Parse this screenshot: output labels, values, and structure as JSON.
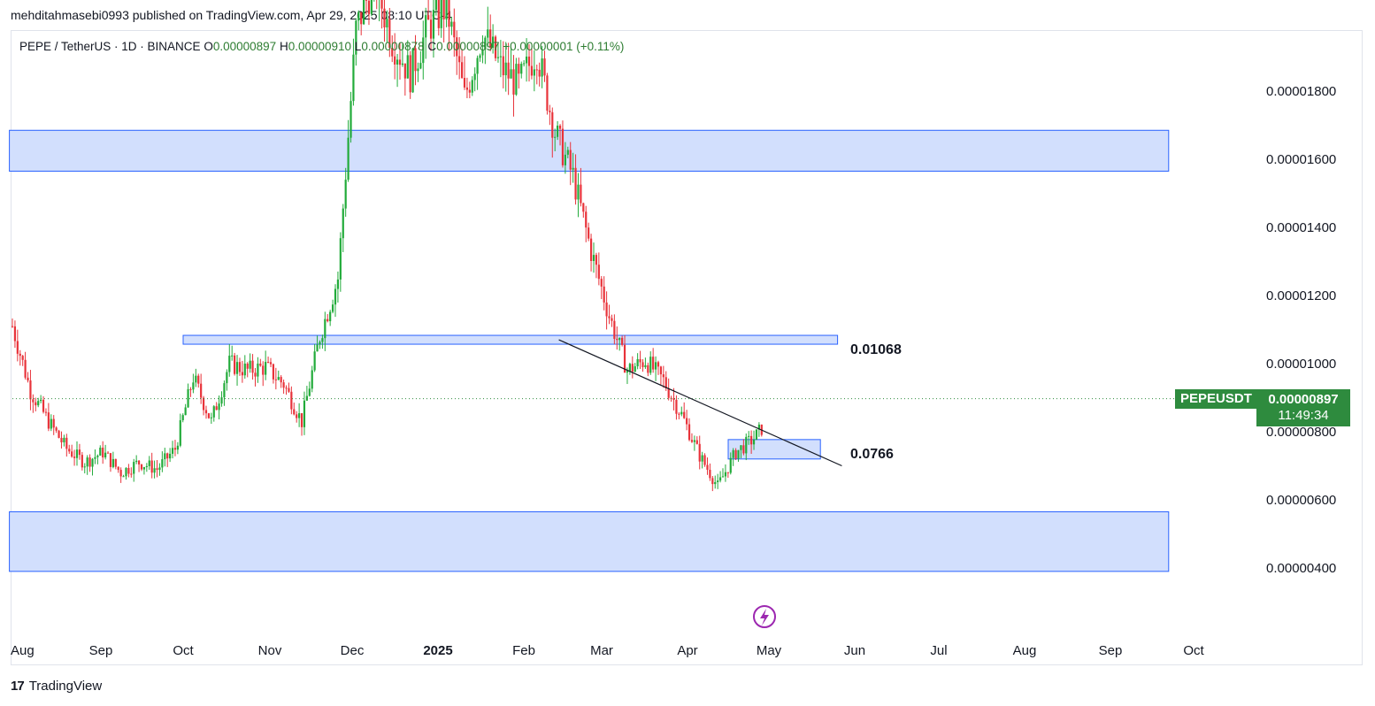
{
  "header": {
    "publish_line": "mehditahmasebi0993 published on TradingView.com, Apr 29, 2025 08:10 UTC-4"
  },
  "legend": {
    "symbol": "PEPE / TetherUS · 1D · BINANCE",
    "o_label": "O",
    "o_value": "0.00000897",
    "h_label": "H",
    "h_value": "0.00000910",
    "l_label": "L",
    "l_value": "0.00000878",
    "c_label": "C",
    "c_value": "0.00000897",
    "change": "+0.00000001 (+0.11%)"
  },
  "price_tag": {
    "symbol": "PEPEUSDT",
    "price": "0.00000897",
    "countdown": "11:49:34"
  },
  "annotations": {
    "upper_level": "0.01068",
    "lower_level": "0.0766"
  },
  "footer": {
    "logo_glyph": "17",
    "brand": "TradingView"
  },
  "colors": {
    "up": "#22ab3a",
    "down": "#e8333a",
    "zone_fill": "#d2dffd",
    "zone_border": "#2962ff",
    "price_tag": "#2e8b3e"
  },
  "chart_data": {
    "type": "candlestick",
    "title": "PEPE / TetherUS · 1D · BINANCE",
    "y_ticks": [
      "0.00001800",
      "0.00001600",
      "0.00001400",
      "0.00001200",
      "0.00001000",
      "0.00000800",
      "0.00000600",
      "0.00000400"
    ],
    "x_ticks": [
      "Aug",
      "Sep",
      "Oct",
      "Nov",
      "Dec",
      "2025",
      "Feb",
      "Mar",
      "Apr",
      "May",
      "Jun",
      "Jul",
      "Aug",
      "Sep",
      "Oct"
    ],
    "x_tick_bold": [
      false,
      false,
      false,
      false,
      false,
      true,
      false,
      false,
      false,
      false,
      false,
      false,
      false,
      false,
      false
    ],
    "ylim": [
      2.6e-06,
      1.96e-05
    ],
    "grid": false,
    "last_price": 8.97e-06,
    "zones": [
      {
        "from_month": -0.1,
        "to_month": 13.7,
        "low": 1.565e-05,
        "high": 1.685e-05
      },
      {
        "from_month": 2.0,
        "to_month": 9.8,
        "low": 1.057e-05,
        "high": 1.083e-05
      },
      {
        "from_month": 8.5,
        "to_month": 9.6,
        "low": 7.2e-06,
        "high": 7.77e-06
      },
      {
        "from_month": -0.1,
        "to_month": 13.7,
        "low": 3.9e-06,
        "high": 5.65e-06
      }
    ],
    "trendline": {
      "from_month": 6.45,
      "from_price": 1.07e-05,
      "to_month": 9.85,
      "to_price": 7e-06
    },
    "series_close_by_week": [
      1.11e-05,
      9.2e-06,
      8.3e-06,
      7.5e-06,
      7.1e-06,
      7.4e-06,
      6.8e-06,
      7.1e-06,
      6.9e-06,
      7.5e-06,
      9.6e-06,
      8.3e-06,
      1e-05,
      9.8e-06,
      9.9e-06,
      9.4e-06,
      8.3e-06,
      1.08e-05,
      1.25e-05,
      1.98e-05,
      2.13e-05,
      1.95e-05,
      1.85e-05,
      1.99e-05,
      2.05e-05,
      1.78e-05,
      1.97e-05,
      1.87e-05,
      1.82e-05,
      1.92e-05,
      1.68e-05,
      1.55e-05,
      1.33e-05,
      1.14e-05,
      9.8e-06,
      1.01e-05,
      9.5e-06,
      8.5e-06,
      7.3e-06,
      6.4e-06,
      7.4e-06,
      7.8e-06,
      8.5e-06,
      7e-06,
      6.4e-06,
      7.2e-06,
      7.8e-06,
      9.3e-06,
      9e-06
    ]
  }
}
